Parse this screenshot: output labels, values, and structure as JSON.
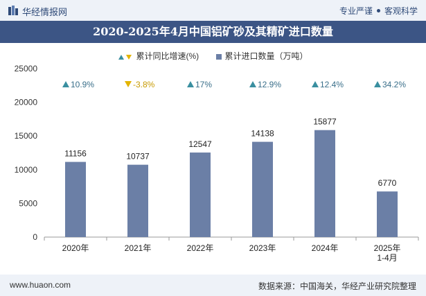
{
  "header": {
    "logo_text": "华经情报网",
    "tag1": "专业严谨",
    "tag2": "客观科学"
  },
  "colors": {
    "bar": "#6b7fa6",
    "up": "#3a8fa0",
    "down": "#e3b400",
    "title_bg": "#3c5585"
  },
  "chart_data": {
    "type": "bar",
    "title": "2020-2025年4月中国铝矿砂及其精矿进口数量",
    "categories": [
      "2020年",
      "2021年",
      "2022年",
      "2023年",
      "2024年",
      "2025年\n1-4月"
    ],
    "series": [
      {
        "name": "累计进口数量（万吨）",
        "values": [
          11156,
          10737,
          12547,
          14138,
          15877,
          6770
        ]
      },
      {
        "name": "累计同比增速(%)",
        "values": [
          10.9,
          -3.8,
          17,
          12.9,
          12.4,
          34.2
        ],
        "labels": [
          "10.9%",
          "-3.8%",
          "17%",
          "12.9%",
          "12.4%",
          "34.2%"
        ]
      }
    ],
    "ylim": [
      0,
      25000
    ],
    "yticks": [
      0,
      5000,
      10000,
      15000,
      20000,
      25000
    ],
    "legend_position": "top-center",
    "grid": false
  },
  "footer": {
    "website": "www.huaon.com",
    "source": "数据来源：中国海关，华经产业研究院整理"
  }
}
